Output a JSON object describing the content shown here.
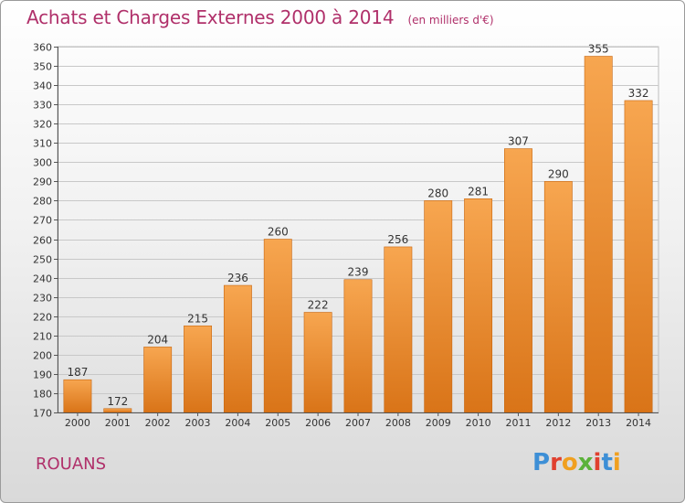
{
  "title": "Achats et Charges Externes 2000 à 2014",
  "subtitle": "(en milliers d'€)",
  "location": "ROUANS",
  "brand": {
    "letters": [
      "P",
      "r",
      "o",
      "x",
      "i",
      "t",
      "i"
    ],
    "colors": [
      "#3d8fd6",
      "#e0402f",
      "#f0a020",
      "#5bb23a",
      "#e0402f",
      "#3d8fd6",
      "#f0a020"
    ]
  },
  "colors": {
    "bar_light": "#f7a650",
    "bar_dark": "#d97418",
    "title": "#b0306a"
  },
  "chart_data": {
    "type": "bar",
    "categories": [
      "2000",
      "2001",
      "2002",
      "2003",
      "2004",
      "2005",
      "2006",
      "2007",
      "2008",
      "2009",
      "2010",
      "2011",
      "2012",
      "2013",
      "2014"
    ],
    "values": [
      187,
      172,
      204,
      215,
      236,
      260,
      222,
      239,
      256,
      280,
      281,
      307,
      290,
      355,
      332
    ],
    "title": "Achats et Charges Externes 2000 à 2014",
    "subtitle": "(en milliers d'€)",
    "xlabel": "",
    "ylabel": "",
    "ylim": [
      170,
      360
    ],
    "yticks": [
      170,
      180,
      190,
      200,
      210,
      220,
      230,
      240,
      250,
      260,
      270,
      280,
      290,
      300,
      310,
      320,
      330,
      340,
      350,
      360
    ],
    "grid": true,
    "legend": "none"
  }
}
